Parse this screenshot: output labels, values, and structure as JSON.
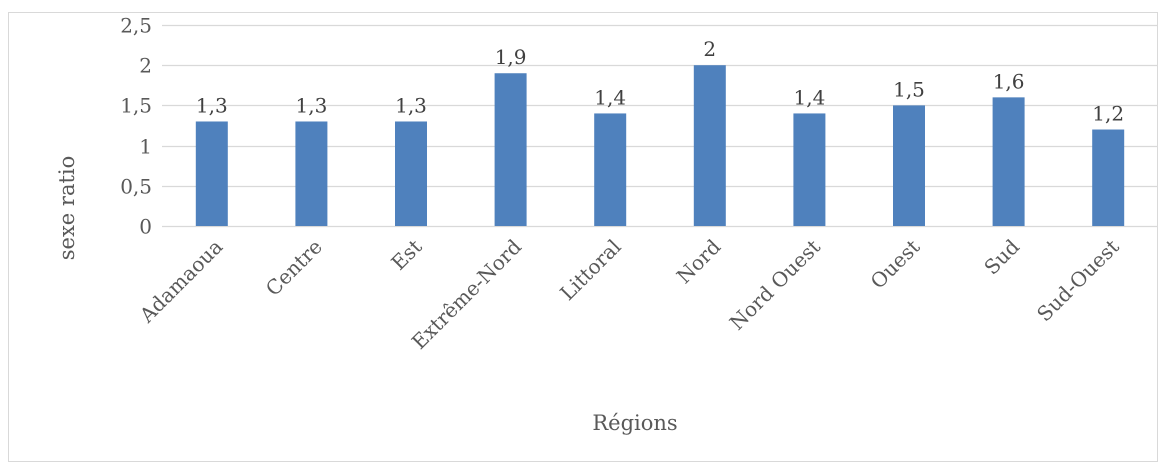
{
  "chart_data": {
    "type": "bar",
    "categories": [
      "Adamaoua",
      "Centre",
      "Est",
      "Extrême-Nord",
      "Littoral",
      "Nord",
      "Nord Ouest",
      "Ouest",
      "Sud",
      "Sud-Ouest"
    ],
    "values": [
      1.3,
      1.3,
      1.3,
      1.9,
      1.4,
      2.0,
      1.4,
      1.5,
      1.6,
      1.2
    ],
    "value_labels": [
      "1,3",
      "1,3",
      "1,3",
      "1,9",
      "1,4",
      "2",
      "1,4",
      "1,5",
      "1,6",
      "1,2"
    ],
    "y_ticks": [
      0,
      0.5,
      1,
      1.5,
      2,
      2.5
    ],
    "y_tick_labels": [
      "0",
      "0,5",
      "1",
      "1,5",
      "2",
      "2,5"
    ],
    "ylim": [
      0,
      2.5
    ],
    "xlabel": "Régions",
    "ylabel": "sexe ratio",
    "bar_color": "#4f81bd",
    "grid_color": "#d9d9d9",
    "grid": true,
    "legend": "none"
  }
}
